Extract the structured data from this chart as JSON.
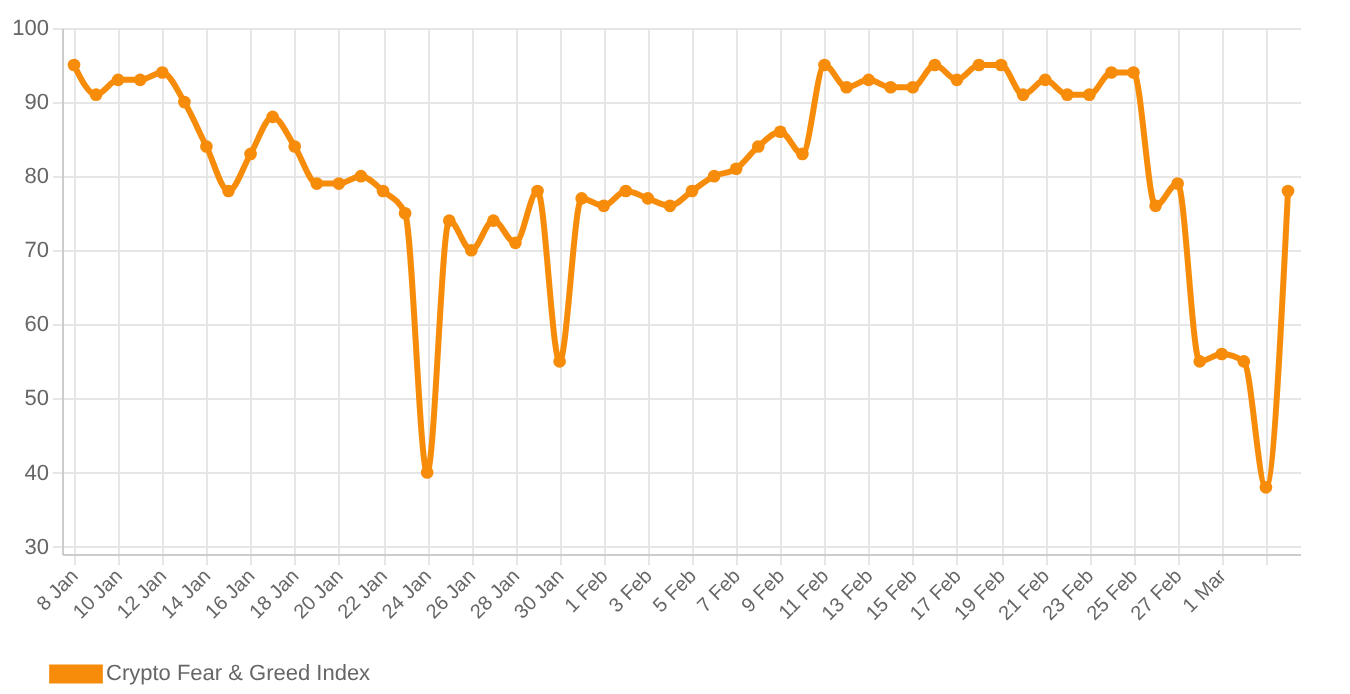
{
  "chart_data": {
    "type": "line",
    "categories": [
      "8 Jan",
      null,
      "10 Jan",
      null,
      "12 Jan",
      null,
      "14 Jan",
      null,
      "16 Jan",
      null,
      "18 Jan",
      null,
      "20 Jan",
      null,
      "22 Jan",
      null,
      "24 Jan",
      null,
      "26 Jan",
      null,
      "28 Jan",
      null,
      "30 Jan",
      null,
      "1 Feb",
      null,
      "3 Feb",
      null,
      "5 Feb",
      null,
      "7 Feb",
      null,
      "9 Feb",
      null,
      "11 Feb",
      null,
      "13 Feb",
      null,
      "15 Feb",
      null,
      "17 Feb",
      null,
      "19 Feb",
      null,
      "21 Feb",
      null,
      "23 Feb",
      null,
      "25 Feb",
      null,
      "27 Feb",
      null,
      "1 Mar",
      null,
      null,
      null
    ],
    "series": [
      {
        "name": "Crypto Fear & Greed Index",
        "color": "#f78c0a",
        "values": [
          95,
          91,
          93,
          93,
          94,
          90,
          84,
          78,
          83,
          88,
          84,
          79,
          79,
          80,
          78,
          75,
          40,
          74,
          70,
          74,
          71,
          78,
          55,
          77,
          76,
          78,
          77,
          76,
          78,
          80,
          81,
          84,
          86,
          83,
          95,
          92,
          93,
          92,
          92,
          95,
          93,
          95,
          95,
          91,
          93,
          91,
          91,
          94,
          94,
          76,
          79,
          55,
          56,
          55,
          38,
          78
        ]
      }
    ],
    "ylim": [
      29,
      100
    ],
    "yticks": [
      30,
      40,
      50,
      60,
      70,
      80,
      90,
      100
    ],
    "grid": true,
    "legend": "bottom",
    "marker": "circle",
    "line_style": "solid"
  }
}
